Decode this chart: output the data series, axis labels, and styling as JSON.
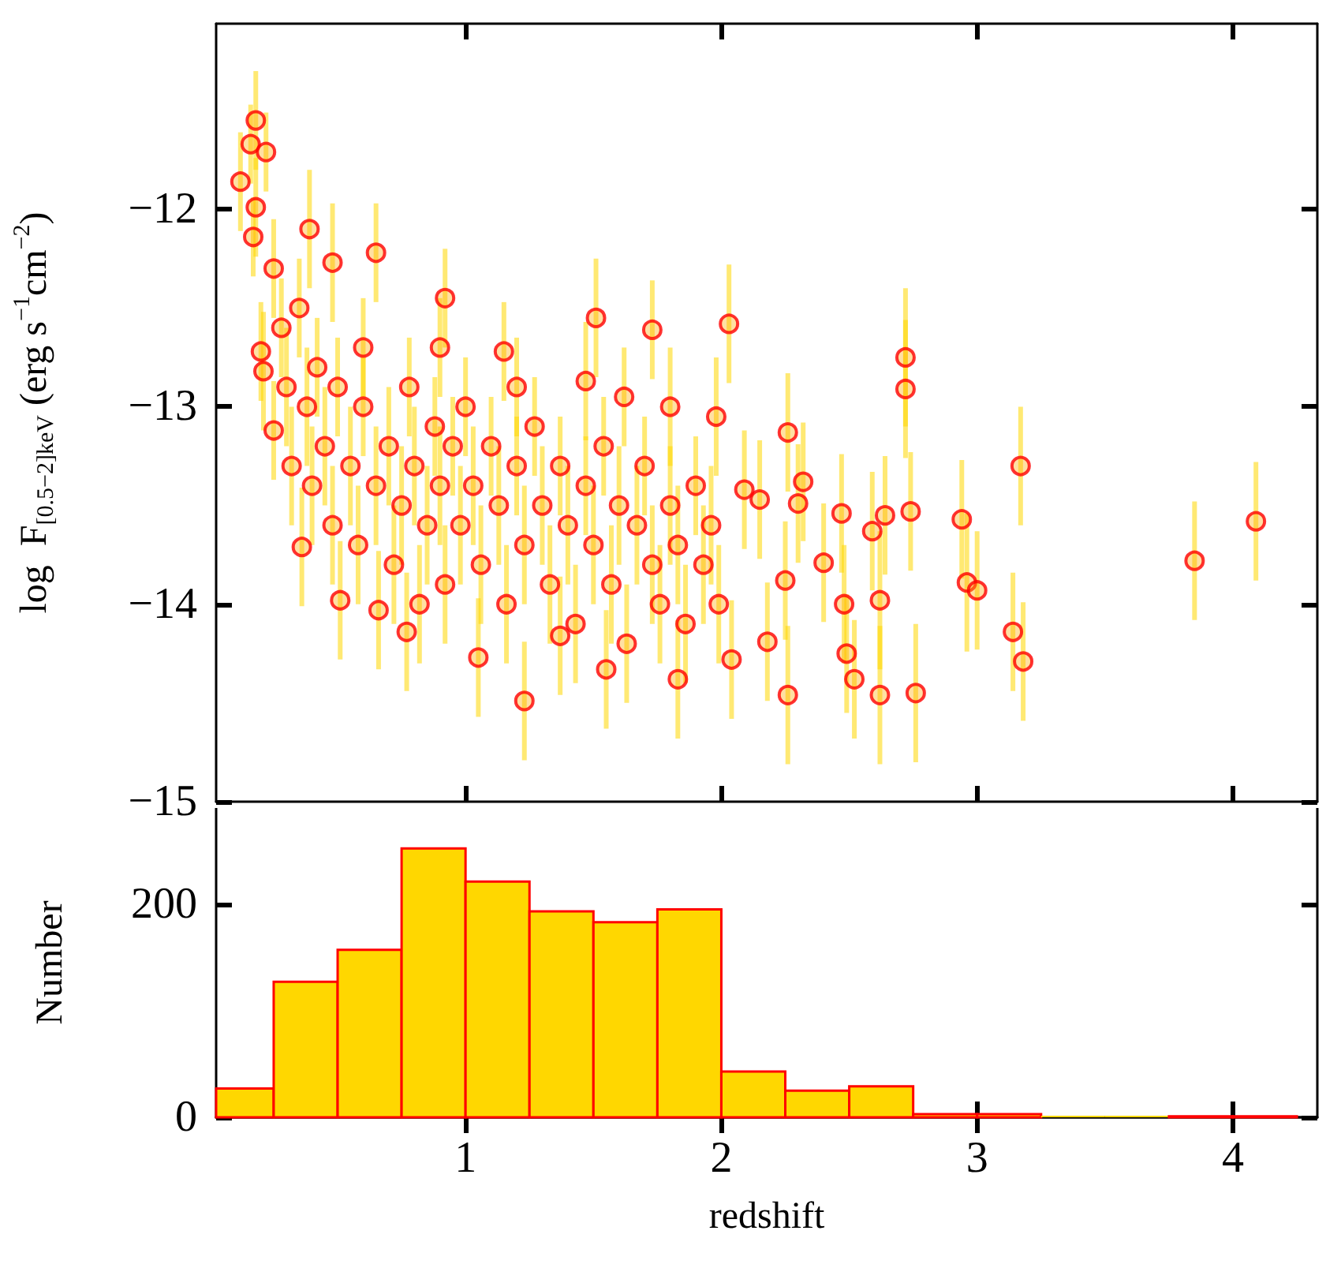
{
  "chart_data": [
    {
      "type": "scatter",
      "ylabel": "log  F$_{[0.5−2]keV}$ (erg s$^{−1}$cm$^{−2}$)",
      "xlim": [
        0.025,
        4.33
      ],
      "xticks": [
        1,
        2,
        3,
        4
      ],
      "ylim": [
        -15,
        -11.06
      ],
      "yticks": [
        {
          "value": -15,
          "label": "−15"
        },
        {
          "value": -14,
          "label": "−14"
        },
        {
          "value": -13,
          "label": "−13"
        },
        {
          "value": -12,
          "label": "−12"
        }
      ],
      "tick_labels": "y",
      "marker": "circle",
      "color": "#ff0000",
      "x": [
        0.18,
        0.16,
        0.12,
        0.22,
        0.18,
        0.17,
        0.39,
        0.65,
        0.48,
        0.92,
        1.51,
        1.73,
        2.03,
        0.2,
        0.21,
        0.25,
        0.36,
        0.51,
        0.77,
        1.23,
        1.05,
        1.55,
        1.83,
        2.04,
        1.15,
        1.47,
        1.62,
        1.8,
        1.98,
        2.09,
        0.66,
        1.37,
        2.72,
        2.72,
        3.17,
        2.94,
        3.85,
        4.09,
        2.96,
        3.0,
        3.14,
        3.18,
        2.76,
        2.62,
        2.26,
        2.52,
        2.49,
        2.74,
        2.64,
        2.59,
        2.62,
        2.47,
        2.48,
        2.4,
        2.26,
        2.32,
        2.3,
        2.25,
        2.18,
        2.15,
        0.25,
        0.28,
        0.3,
        0.32,
        0.35,
        0.38,
        0.4,
        0.42,
        0.45,
        0.48,
        0.5,
        0.55,
        0.58,
        0.6,
        0.65,
        0.7,
        0.72,
        0.75,
        0.78,
        0.8,
        0.82,
        0.85,
        0.88,
        0.9,
        0.92,
        0.95,
        0.98,
        1.0,
        1.03,
        1.06,
        1.1,
        1.13,
        1.16,
        1.2,
        1.23,
        1.27,
        1.3,
        1.33,
        1.37,
        1.4,
        1.43,
        1.47,
        1.5,
        1.54,
        1.57,
        1.6,
        1.63,
        1.67,
        1.7,
        1.73,
        1.76,
        1.8,
        1.83,
        1.86,
        1.9,
        1.93,
        1.96,
        1.99,
        0.6,
        0.9,
        1.2
      ],
      "values": [
        -11.55,
        -11.67,
        -11.86,
        -11.71,
        -11.99,
        -12.14,
        -12.1,
        -12.22,
        -12.27,
        -12.45,
        -12.55,
        -12.61,
        -12.58,
        -12.72,
        -12.82,
        -13.12,
        -13.71,
        -13.98,
        -14.14,
        -14.49,
        -14.27,
        -14.33,
        -14.38,
        -14.28,
        -12.72,
        -12.87,
        -12.95,
        -13.0,
        -13.05,
        -13.42,
        -14.03,
        -14.16,
        -12.75,
        -12.91,
        -13.3,
        -13.57,
        -13.78,
        -13.58,
        -13.89,
        -13.93,
        -14.14,
        -14.29,
        -14.45,
        -14.46,
        -14.46,
        -14.38,
        -14.25,
        -13.53,
        -13.55,
        -13.63,
        -13.98,
        -13.54,
        -14.0,
        -13.79,
        -13.13,
        -13.38,
        -13.49,
        -13.88,
        -14.19,
        -13.47,
        -12.3,
        -12.6,
        -12.9,
        -13.3,
        -12.5,
        -13.0,
        -13.4,
        -12.8,
        -13.2,
        -13.6,
        -12.9,
        -13.3,
        -13.7,
        -13.0,
        -13.4,
        -13.2,
        -13.8,
        -13.5,
        -12.9,
        -13.3,
        -14.0,
        -13.6,
        -13.1,
        -13.4,
        -13.9,
        -13.2,
        -13.6,
        -13.0,
        -13.4,
        -13.8,
        -13.2,
        -13.5,
        -14.0,
        -13.3,
        -13.7,
        -13.1,
        -13.5,
        -13.9,
        -13.3,
        -13.6,
        -14.1,
        -13.4,
        -13.7,
        -13.2,
        -13.9,
        -13.5,
        -14.2,
        -13.6,
        -13.3,
        -13.8,
        -14.0,
        -13.5,
        -13.7,
        -14.1,
        -13.4,
        -13.8,
        -13.6,
        -14.0,
        -12.7,
        -12.7,
        -12.9
      ],
      "errors": [
        0.25,
        0.2,
        0.25,
        0.2,
        0.25,
        0.2,
        0.3,
        0.25,
        0.3,
        0.25,
        0.3,
        0.25,
        0.3,
        0.25,
        0.3,
        0.25,
        0.3,
        0.3,
        0.3,
        0.3,
        0.3,
        0.3,
        0.3,
        0.3,
        0.25,
        0.3,
        0.25,
        0.3,
        0.3,
        0.3,
        0.3,
        0.3,
        0.35,
        0.35,
        0.3,
        0.3,
        0.3,
        0.3,
        0.35,
        0.3,
        0.3,
        0.3,
        0.35,
        0.35,
        0.35,
        0.3,
        0.3,
        0.3,
        0.3,
        0.3,
        0.35,
        0.3,
        0.3,
        0.3,
        0.3,
        0.3,
        0.3,
        0.3,
        0.3,
        0.3,
        0.25,
        0.25,
        0.3,
        0.3,
        0.25,
        0.3,
        0.3,
        0.25,
        0.3,
        0.3,
        0.25,
        0.3,
        0.3,
        0.25,
        0.3,
        0.3,
        0.3,
        0.3,
        0.25,
        0.3,
        0.3,
        0.3,
        0.25,
        0.3,
        0.3,
        0.25,
        0.3,
        0.25,
        0.3,
        0.3,
        0.25,
        0.3,
        0.3,
        0.25,
        0.3,
        0.25,
        0.3,
        0.3,
        0.25,
        0.3,
        0.3,
        0.25,
        0.3,
        0.25,
        0.3,
        0.3,
        0.3,
        0.3,
        0.25,
        0.3,
        0.3,
        0.3,
        0.3,
        0.3,
        0.25,
        0.3,
        0.3,
        0.3,
        0.25,
        0.25,
        0.25
      ]
    },
    {
      "type": "histogram",
      "xlabel": "redshift",
      "ylabel": "Number",
      "xlim": [
        0.025,
        4.33
      ],
      "xticks": [
        1,
        2,
        3,
        4
      ],
      "ylim": [
        0,
        290
      ],
      "yticks": [
        0,
        200
      ],
      "color": "#ffd700",
      "bins": [
        0.025,
        0.25,
        0.5,
        0.75,
        1,
        1.25,
        1.5,
        1.75,
        2,
        2.25,
        2.5,
        2.75,
        3,
        3.25,
        3.5,
        3.75,
        4,
        4.25
      ],
      "values": [
        27,
        127,
        157,
        252,
        221,
        193,
        183,
        195,
        43,
        25,
        29,
        3,
        3,
        0,
        0,
        1,
        1
      ]
    }
  ]
}
